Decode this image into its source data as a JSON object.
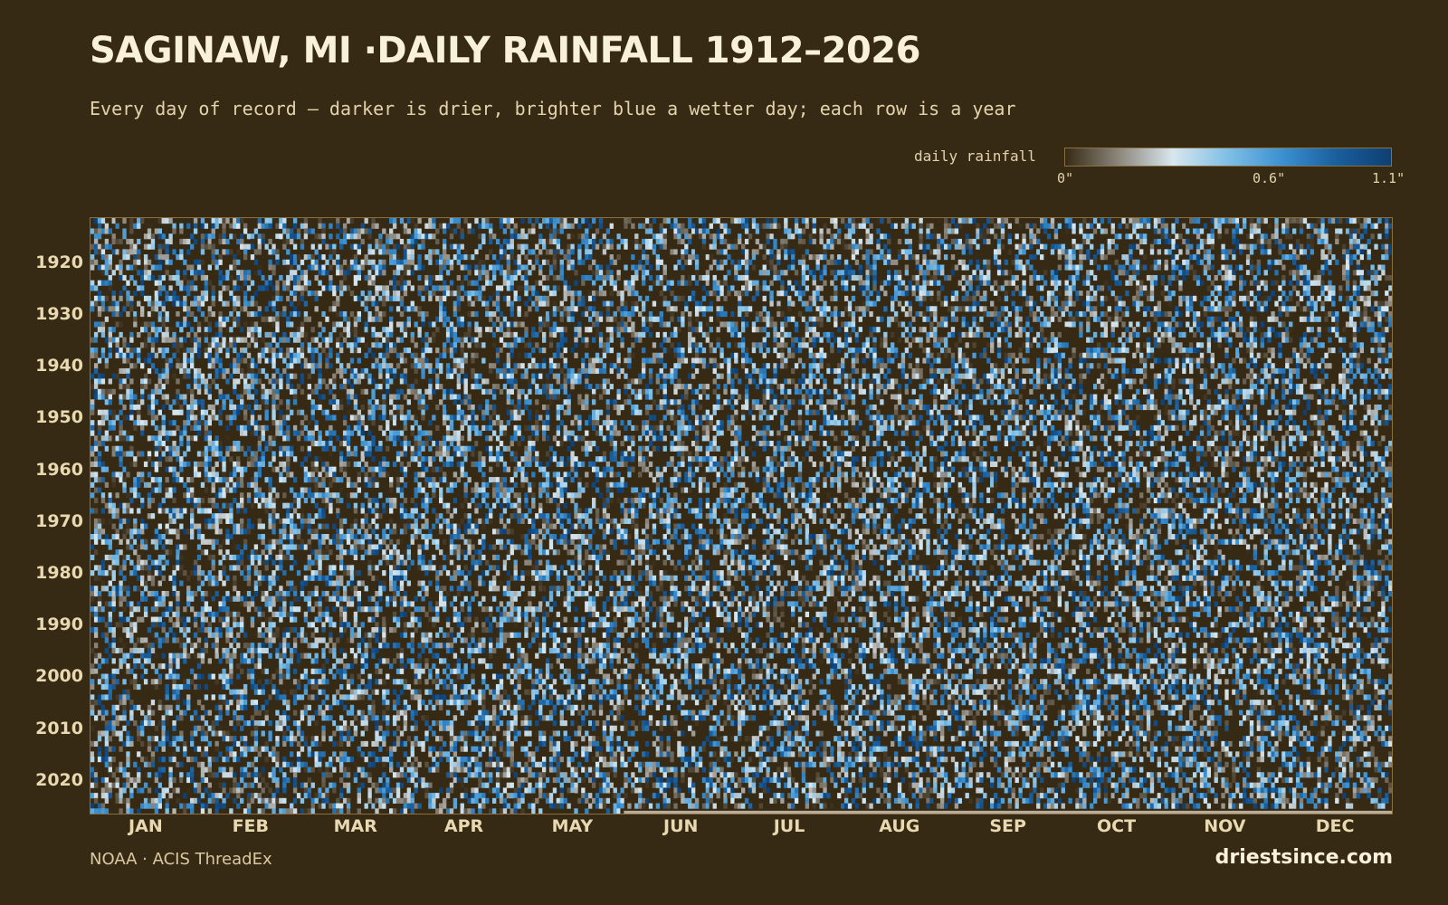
{
  "title": "SAGINAW, MI ·DAILY RAINFALL 1912–2026",
  "subtitle": "Every day of record — darker is drier, brighter blue a wetter day; each row is a year",
  "legend": {
    "label": "daily rainfall",
    "ticks": [
      {
        "value": 0,
        "label": "0\""
      },
      {
        "value": 0.6,
        "label": "0.6\""
      },
      {
        "value": 1.1,
        "label": "1.1\""
      }
    ]
  },
  "colors": {
    "background": "#372a15",
    "scale": [
      "#372a15",
      "#8f8a80",
      "#d8e6ee",
      "#7fbfe6",
      "#3a8fd0",
      "#1a5f9e",
      "#0e3f72"
    ]
  },
  "source": "NOAA · ACIS ThreadEx",
  "brand": "driestsince.com",
  "chart_data": {
    "type": "heatmap",
    "title": "SAGINAW, MI ·DAILY RAINFALL 1912–2026",
    "x_axis": "day of year",
    "y_axis": "year",
    "year_range": [
      1912,
      2026
    ],
    "day_range": [
      1,
      366
    ],
    "value_range": [
      0,
      1.1
    ],
    "value_units": "inches",
    "month_labels": [
      "JAN",
      "FEB",
      "MAR",
      "APR",
      "MAY",
      "JUN",
      "JUL",
      "AUG",
      "SEP",
      "OCT",
      "NOV",
      "DEC"
    ],
    "month_start_days": [
      1,
      32,
      60,
      91,
      121,
      152,
      182,
      213,
      244,
      274,
      305,
      335
    ],
    "year_ticks": [
      1920,
      1930,
      1940,
      1950,
      1960,
      1970,
      1980,
      1990,
      2000,
      2010,
      2020
    ],
    "colorbar": {
      "label": "daily rainfall",
      "min": 0,
      "max": 1.1
    },
    "last_recorded_day_2026": 150
  }
}
